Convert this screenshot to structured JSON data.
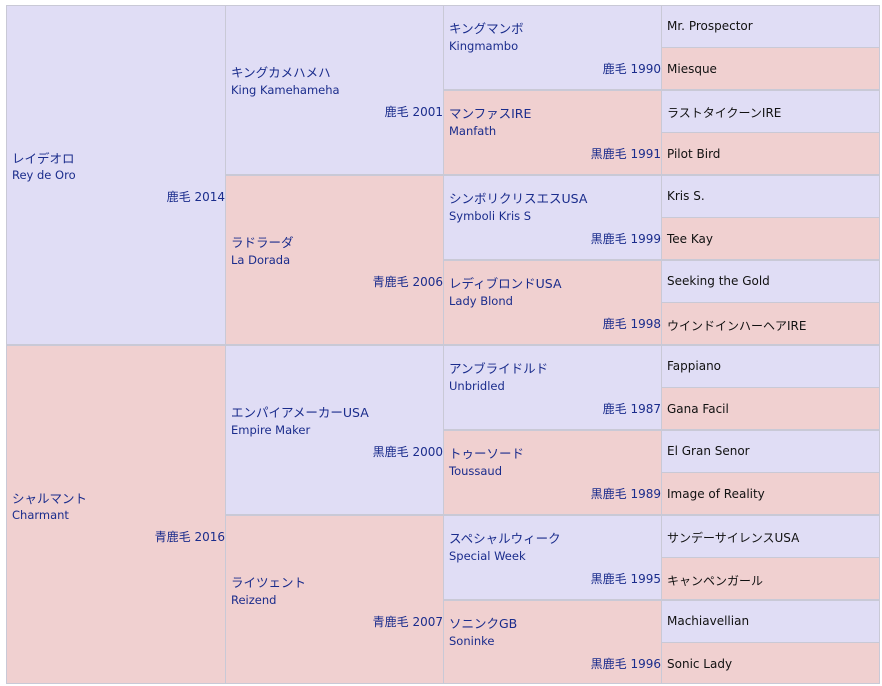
{
  "gen1": [
    {
      "jp": "レイデオロ",
      "en": "Rey de Oro",
      "info": "鹿毛 2014"
    },
    {
      "jp": "シャルマント",
      "en": "Charmant",
      "info": "青鹿毛 2016"
    }
  ],
  "gen2": [
    {
      "jp": "キングカメハメハ",
      "en": "King Kamehameha",
      "info": "鹿毛 2001"
    },
    {
      "jp": "ラドラーダ",
      "en": "La Dorada",
      "info": "青鹿毛 2006"
    },
    {
      "jp": "エンパイアメーカーUSA",
      "en": "Empire Maker",
      "info": "黒鹿毛 2000"
    },
    {
      "jp": "ライツェント",
      "en": "Reizend",
      "info": "青鹿毛 2007"
    }
  ],
  "gen3": [
    {
      "jp": "キングマンボ",
      "en": "Kingmambo",
      "info": "鹿毛 1990"
    },
    {
      "jp": "マンファスIRE",
      "en": "Manfath",
      "info": "黒鹿毛 1991"
    },
    {
      "jp": "シンボリクリスエスUSA",
      "en": "Symboli Kris S",
      "info": "黒鹿毛 1999"
    },
    {
      "jp": "レディブロンドUSA",
      "en": "Lady Blond",
      "info": "鹿毛 1998"
    },
    {
      "jp": "アンブライドルド",
      "en": "Unbridled",
      "info": "鹿毛 1987"
    },
    {
      "jp": "トゥーソード",
      "en": "Toussaud",
      "info": "黒鹿毛 1989"
    },
    {
      "jp": "スペシャルウィーク",
      "en": "Special Week",
      "info": "黒鹿毛 1995"
    },
    {
      "jp": "ソニンクGB",
      "en": "Soninke",
      "info": "黒鹿毛 1996"
    }
  ],
  "gen4": [
    "Mr. Prospector",
    "Miesque",
    "ラストタイクーンIRE",
    "Pilot Bird",
    "Kris S.",
    "Tee Kay",
    "Seeking the Gold",
    "ウインドインハーヘアIRE",
    "Fappiano",
    "Gana Facil",
    "El Gran Senor",
    "Image of Reality",
    "サンデーサイレンスUSA",
    "キャンペンガール",
    "Machiavellian",
    "Sonic Lady"
  ],
  "colors": {
    "sire": "#e0ddf5",
    "dam": "#f0d0d0",
    "text": "#1a2c8c",
    "border": "#c9c9d6"
  }
}
